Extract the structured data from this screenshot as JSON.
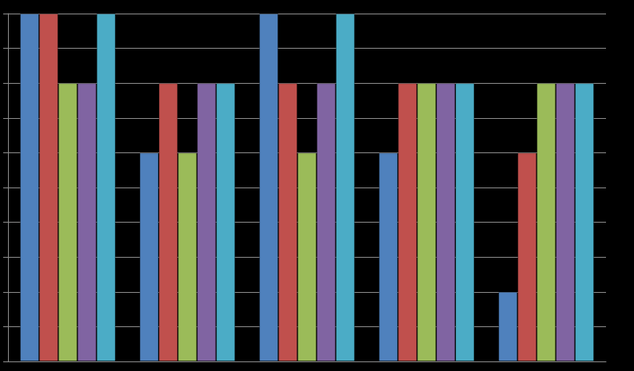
{
  "chart_data": {
    "type": "bar",
    "categories": [
      null,
      null,
      null,
      null,
      null
    ],
    "series": [
      {
        "color": "#4f81bd",
        "values": [
          10,
          6,
          10,
          6,
          2
        ]
      },
      {
        "color": "#c0504d",
        "values": [
          10,
          8,
          8,
          8,
          6
        ]
      },
      {
        "color": "#9bbb59",
        "values": [
          8,
          6,
          6,
          8,
          8
        ]
      },
      {
        "color": "#8064a2",
        "values": [
          8,
          8,
          8,
          8,
          8
        ]
      },
      {
        "color": "#4bacc6",
        "values": [
          10,
          8,
          10,
          8,
          8
        ]
      }
    ],
    "ylim": [
      0,
      10
    ],
    "yticks": [
      0,
      1,
      2,
      3,
      4,
      5,
      6,
      7,
      8,
      9,
      10
    ],
    "grid": true,
    "tick_labels": false
  }
}
